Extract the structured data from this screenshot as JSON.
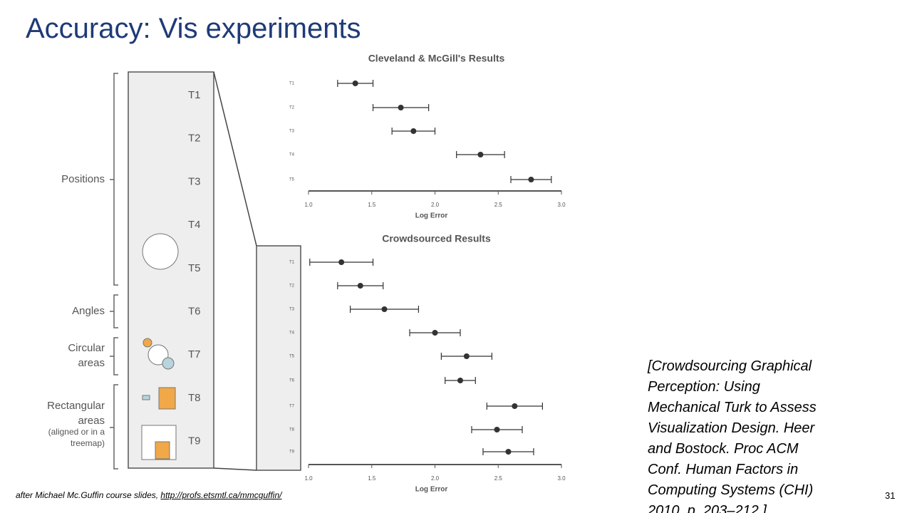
{
  "slide": {
    "title": "Accuracy: Vis experiments",
    "citation": [
      "[Crowdsourcing Graphical",
      "Perception: Using",
      "Mechanical Turk to Assess",
      "Visualization Design. Heer",
      "and Bostock. Proc ACM",
      "Conf. Human Factors in",
      "Computing Systems (CHI)",
      "2010, p. 203–212.]"
    ],
    "footer": {
      "text": "after Michael Mc.Guffin course slides, ",
      "link": "http://profs.etsmtl.ca/mmcguffin/"
    },
    "page_number": "31"
  },
  "tasks_panel": {
    "groups": [
      "Positions",
      "Angles",
      "Circular",
      "areas",
      "Rectangular",
      "areas",
      "(aligned or in a",
      "treemap)"
    ],
    "tasks": [
      "T1",
      "T2",
      "T3",
      "T4",
      "T5",
      "T6",
      "T7",
      "T8",
      "T9"
    ]
  },
  "chart_data": [
    {
      "type": "errorbar",
      "title": "Cleveland & McGill's Results",
      "x_label": "Log Error",
      "categories": [
        "T1",
        "T2",
        "T3",
        "T4",
        "T5"
      ],
      "series": [
        {
          "color": "#333333",
          "values": [
            1.37,
            1.73,
            1.83,
            2.36,
            2.76
          ],
          "errors": [
            0.14,
            0.22,
            0.17,
            0.19,
            0.16
          ]
        }
      ],
      "xlim": [
        1,
        3
      ],
      "xticks": [
        {
          "value": 1,
          "label": "1.0"
        },
        1.5,
        {
          "value": 2,
          "label": "2.0"
        },
        2.5,
        {
          "value": 3,
          "label": "3.0"
        }
      ]
    },
    {
      "type": "errorbar",
      "title": "Crowdsourced Results",
      "x_label": "Log Error",
      "categories": [
        "T1",
        "T2",
        "T3",
        "T4",
        "T5",
        "T6",
        "T7",
        "T8",
        "T9"
      ],
      "series": [
        {
          "color": "#333333",
          "values": [
            1.26,
            1.41,
            1.6,
            2.0,
            2.25,
            2.2,
            2.63,
            2.49,
            2.58
          ],
          "errors": [
            0.25,
            0.18,
            0.27,
            0.2,
            0.2,
            0.12,
            0.22,
            0.2,
            0.2
          ]
        }
      ],
      "xlim": [
        1,
        3
      ],
      "xticks": [
        {
          "value": 1,
          "label": "1.0"
        },
        1.5,
        {
          "value": 2,
          "label": "2.0"
        },
        2.5,
        {
          "value": 3,
          "label": "3.0"
        }
      ]
    }
  ]
}
